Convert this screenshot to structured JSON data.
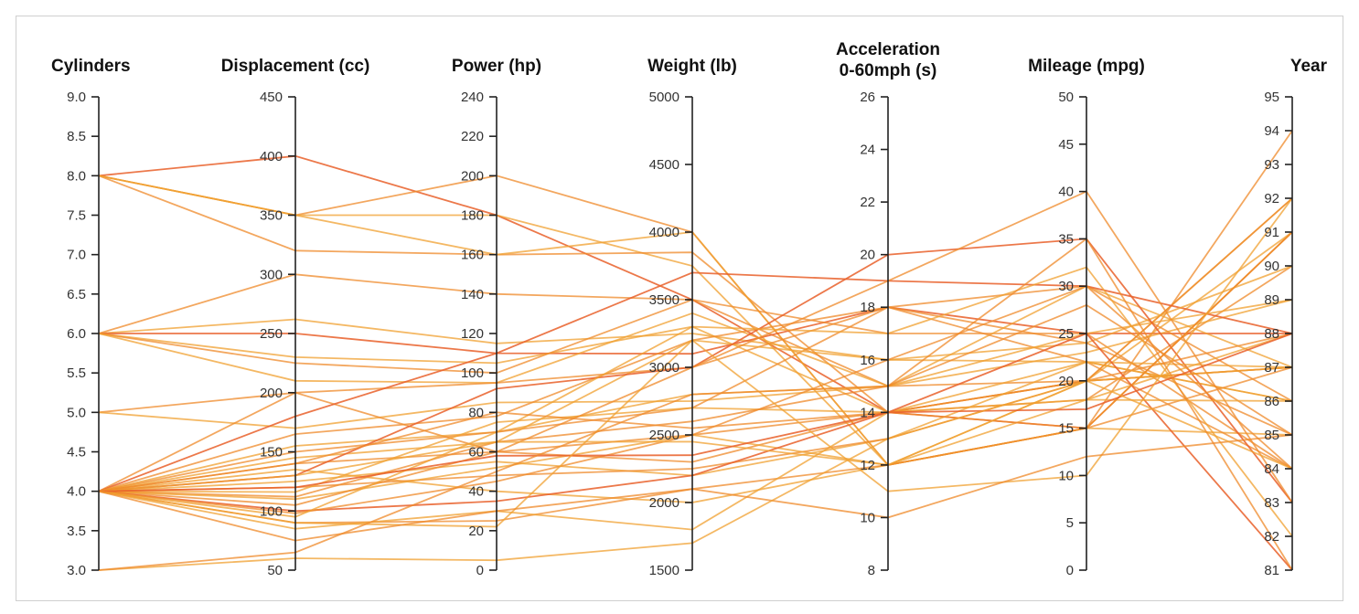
{
  "chart_data": {
    "type": "parallel-coordinates",
    "title": "",
    "line_colors": [
      "#f0a030",
      "#ef8a2a",
      "#e9602a"
    ],
    "axes": [
      {
        "name": "Cylinders",
        "title_lines": [
          "Cylinders"
        ],
        "range": [
          3.0,
          9.0
        ],
        "ticks": [
          "3.0",
          "3.5",
          "4.0",
          "4.5",
          "5.0",
          "5.5",
          "6.0",
          "6.5",
          "7.0",
          "7.5",
          "8.0",
          "8.5",
          "9.0"
        ],
        "label_side": "left"
      },
      {
        "name": "Displacement (cc)",
        "title_lines": [
          "Displacement (cc)"
        ],
        "range": [
          50,
          450
        ],
        "ticks": [
          "50",
          "100",
          "150",
          "200",
          "250",
          "300",
          "350",
          "400",
          "450"
        ],
        "label_side": "left"
      },
      {
        "name": "Power (hp)",
        "title_lines": [
          "Power (hp)"
        ],
        "range": [
          0,
          240
        ],
        "ticks": [
          "0",
          "20",
          "40",
          "60",
          "80",
          "100",
          "120",
          "140",
          "160",
          "180",
          "200",
          "220",
          "240"
        ],
        "label_side": "left"
      },
      {
        "name": "Weight (lb)",
        "title_lines": [
          "Weight (lb)"
        ],
        "range": [
          1500,
          5000
        ],
        "ticks": [
          "1500",
          "2000",
          "2500",
          "3000",
          "3500",
          "4000",
          "4500",
          "5000"
        ],
        "label_side": "left"
      },
      {
        "name": "Acceleration 0-60mph (s)",
        "title_lines": [
          "Acceleration",
          "0-60mph (s)"
        ],
        "range": [
          8,
          26
        ],
        "ticks": [
          "8",
          "10",
          "12",
          "14",
          "16",
          "18",
          "20",
          "22",
          "24",
          "26"
        ],
        "label_side": "left"
      },
      {
        "name": "Mileage (mpg)",
        "title_lines": [
          "Mileage (mpg)"
        ],
        "range": [
          0,
          50
        ],
        "ticks": [
          "0",
          "5",
          "10",
          "15",
          "20",
          "25",
          "30",
          "35",
          "40",
          "45",
          "50"
        ],
        "label_side": "left"
      },
      {
        "name": "Year",
        "title_lines": [
          "Year"
        ],
        "range": [
          81,
          95
        ],
        "ticks": [
          "81",
          "82",
          "83",
          "84",
          "85",
          "86",
          "87",
          "88",
          "89",
          "90",
          "91",
          "92",
          "93",
          "94",
          "95"
        ],
        "label_side": "left"
      }
    ],
    "records": [
      [
        8,
        400,
        180,
        3500,
        14,
        15,
        91
      ],
      [
        8,
        350,
        200,
        4000,
        12,
        15,
        94
      ],
      [
        8,
        350,
        180,
        3750,
        12,
        20,
        92
      ],
      [
        8,
        320,
        160,
        3850,
        14,
        18,
        90
      ],
      [
        8,
        350,
        160,
        4000,
        12,
        15,
        85
      ],
      [
        6,
        300,
        140,
        3500,
        15,
        20,
        87
      ],
      [
        6,
        262,
        115,
        3250,
        16,
        22,
        86
      ],
      [
        6,
        250,
        110,
        3100,
        18,
        25,
        88
      ],
      [
        6,
        230,
        105,
        3300,
        14,
        20,
        91
      ],
      [
        6,
        225,
        100,
        3500,
        17,
        25,
        84
      ],
      [
        6,
        210,
        95,
        3400,
        15,
        23,
        89
      ],
      [
        5,
        200,
        95,
        3000,
        18,
        24,
        85
      ],
      [
        5,
        170,
        85,
        2750,
        15,
        30,
        87
      ],
      [
        4,
        200,
        60,
        2500,
        14,
        20,
        92
      ],
      [
        4,
        180,
        110,
        3700,
        19,
        30,
        88
      ],
      [
        4,
        165,
        78,
        3200,
        18,
        22,
        84
      ],
      [
        4,
        155,
        70,
        2800,
        15,
        25,
        89
      ],
      [
        4,
        150,
        70,
        2700,
        18,
        30,
        86
      ],
      [
        4,
        145,
        65,
        3200,
        16,
        24,
        90
      ],
      [
        4,
        140,
        60,
        2300,
        14,
        20,
        87
      ],
      [
        4,
        135,
        40,
        2000,
        12,
        15,
        91
      ],
      [
        4,
        130,
        92,
        3000,
        20,
        35,
        83
      ],
      [
        4,
        125,
        55,
        2200,
        13,
        22,
        87
      ],
      [
        4,
        120,
        48,
        2250,
        13,
        20,
        88
      ],
      [
        4,
        116,
        75,
        2700,
        14,
        22,
        86
      ],
      [
        4,
        112,
        65,
        2600,
        15,
        28,
        85
      ],
      [
        4,
        110,
        52,
        2500,
        12,
        18,
        88
      ],
      [
        4,
        105,
        60,
        3000,
        19,
        40,
        83
      ],
      [
        4,
        100,
        35,
        2200,
        14,
        25,
        81
      ],
      [
        4,
        98,
        45,
        2500,
        16,
        30,
        84
      ],
      [
        4,
        95,
        70,
        3300,
        17,
        32,
        82
      ],
      [
        4,
        90,
        25,
        2100,
        12,
        15,
        87
      ],
      [
        4,
        85,
        30,
        1800,
        14,
        18,
        86
      ],
      [
        4,
        140,
        80,
        2550,
        14,
        15,
        91
      ],
      [
        4,
        130,
        65,
        2450,
        12,
        20,
        87
      ],
      [
        4,
        120,
        58,
        2350,
        14,
        17,
        88
      ],
      [
        4,
        90,
        22,
        3200,
        11,
        10,
        92
      ],
      [
        4,
        75,
        30,
        2100,
        10,
        12,
        85
      ],
      [
        3,
        60,
        5,
        1700,
        13,
        20,
        84
      ],
      [
        3,
        65,
        50,
        2800,
        15,
        35,
        81
      ]
    ]
  }
}
